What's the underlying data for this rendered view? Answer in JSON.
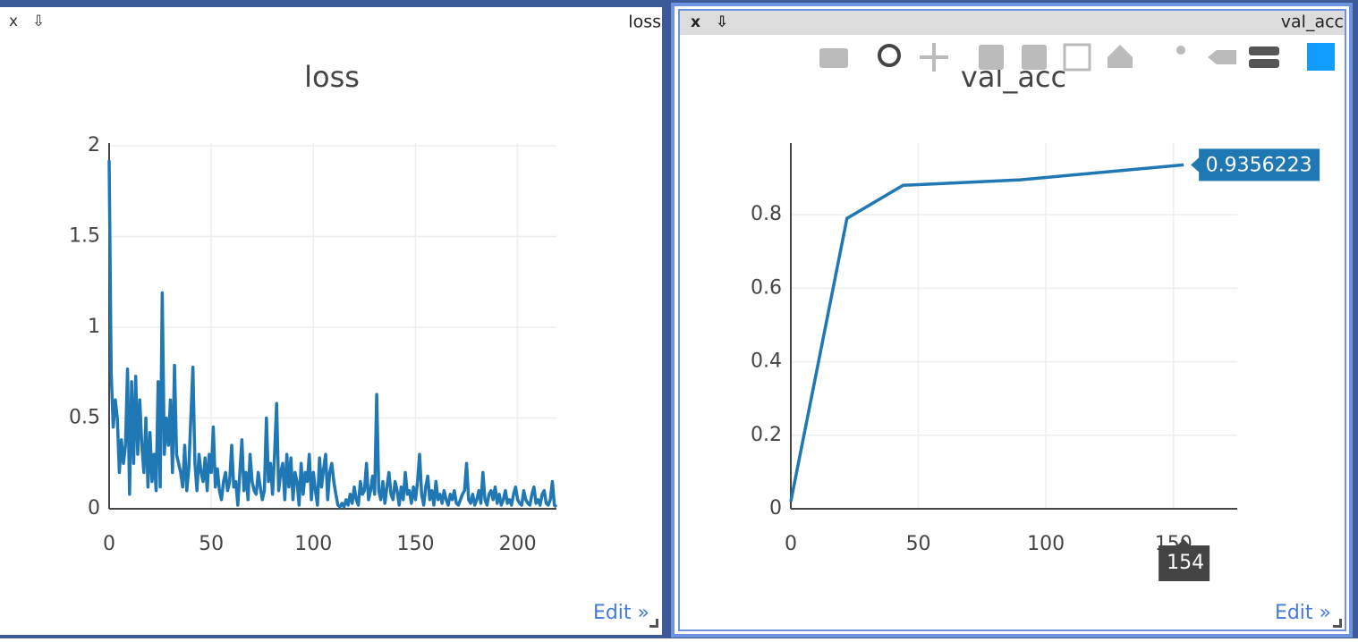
{
  "windows": [
    {
      "close": "x",
      "download": "⇩",
      "title": "loss",
      "edit": "Edit »"
    },
    {
      "close": "x",
      "download": "⇩",
      "title": "val_acc",
      "edit": "Edit »"
    }
  ],
  "chart_data": [
    {
      "type": "line",
      "title": "loss",
      "x": [
        0,
        1,
        2,
        3,
        4,
        5,
        6,
        7,
        8,
        9,
        10,
        11,
        12,
        13,
        14,
        15,
        16,
        17,
        18,
        19,
        20,
        21,
        22,
        23,
        24,
        25,
        26,
        27,
        28,
        29,
        30,
        31,
        32,
        33,
        34,
        35,
        36,
        37,
        38,
        39,
        40,
        41,
        42,
        43,
        44,
        45,
        46,
        47,
        48,
        49,
        50,
        51,
        52,
        53,
        54,
        55,
        56,
        57,
        58,
        59,
        60,
        61,
        62,
        63,
        64,
        65,
        66,
        67,
        68,
        69,
        70,
        71,
        72,
        73,
        74,
        75,
        76,
        77,
        78,
        79,
        80,
        81,
        82,
        83,
        84,
        85,
        86,
        87,
        88,
        89,
        90,
        91,
        92,
        93,
        94,
        95,
        96,
        97,
        98,
        99,
        100,
        101,
        102,
        103,
        104,
        105,
        106,
        107,
        108,
        109,
        110,
        111,
        112,
        113,
        114,
        115,
        116,
        117,
        118,
        119,
        120,
        121,
        122,
        123,
        124,
        125,
        126,
        127,
        128,
        129,
        130,
        131,
        132,
        133,
        134,
        135,
        136,
        137,
        138,
        139,
        140,
        141,
        142,
        143,
        144,
        145,
        146,
        147,
        148,
        149,
        150,
        151,
        152,
        153,
        154,
        155,
        156,
        157,
        158,
        159,
        160,
        161,
        162,
        163,
        164,
        165,
        166,
        167,
        168,
        169,
        170,
        171,
        172,
        173,
        174,
        175,
        176,
        177,
        178,
        179,
        180,
        181,
        182,
        183,
        184,
        185,
        186,
        187,
        188,
        189,
        190,
        191,
        192,
        193,
        194,
        195,
        196,
        197,
        198,
        199,
        200,
        201,
        202,
        203,
        204,
        205,
        206,
        207,
        208,
        209,
        210,
        211,
        212,
        213,
        214,
        215,
        216,
        217,
        218,
        219
      ],
      "series": [
        {
          "color": "#1f77b4",
          "values": [
            1.92,
            0.75,
            0.45,
            0.6,
            0.5,
            0.2,
            0.38,
            0.25,
            0.35,
            0.77,
            0.08,
            0.7,
            0.25,
            0.73,
            0.3,
            0.6,
            0.35,
            0.2,
            0.5,
            0.12,
            0.42,
            0.15,
            0.3,
            0.1,
            0.7,
            0.12,
            1.19,
            0.3,
            0.5,
            0.35,
            0.6,
            0.2,
            0.79,
            0.3,
            0.25,
            0.2,
            0.12,
            0.35,
            0.1,
            0.22,
            0.5,
            0.78,
            0.25,
            0.1,
            0.3,
            0.2,
            0.15,
            0.28,
            0.1,
            0.3,
            0.2,
            0.45,
            0.12,
            0.22,
            0.1,
            0.05,
            0.15,
            0.2,
            0.1,
            0.15,
            0.35,
            0.12,
            0.15,
            0.02,
            0.2,
            0.38,
            0.1,
            0.2,
            0.05,
            0.3,
            0.15,
            0.1,
            0.08,
            0.2,
            0.12,
            0.05,
            0.1,
            0.5,
            0.15,
            0.25,
            0.08,
            0.3,
            0.58,
            0.1,
            0.2,
            0.25,
            0.05,
            0.3,
            0.12,
            0.28,
            0.05,
            0.2,
            0.15,
            0.02,
            0.25,
            0.08,
            0.2,
            0.15,
            0.3,
            0.05,
            0.2,
            0.1,
            0.02,
            0.28,
            0.12,
            0.22,
            0.3,
            0.05,
            0.2,
            0.25,
            0.15,
            0.08,
            0.02,
            0.01,
            0.03,
            0.01,
            0.05,
            0.02,
            0.08,
            0.03,
            0.12,
            0.05,
            0.02,
            0.15,
            0.08,
            0.1,
            0.25,
            0.05,
            0.1,
            0.18,
            0.08,
            0.63,
            0.1,
            0.05,
            0.15,
            0.03,
            0.12,
            0.2,
            0.08,
            0.05,
            0.15,
            0.1,
            0.02,
            0.12,
            0.05,
            0.2,
            0.08,
            0.1,
            0.03,
            0.12,
            0.05,
            0.15,
            0.3,
            0.08,
            0.02,
            0.12,
            0.18,
            0.05,
            0.1,
            0.02,
            0.15,
            0.05,
            0.08,
            0.03,
            0.1,
            0.05,
            0.02,
            0.08,
            0.05,
            0.1,
            0.03,
            0.02,
            0.05,
            0.08,
            0.1,
            0.25,
            0.05,
            0.03,
            0.08,
            0.02,
            0.05,
            0.1,
            0.03,
            0.2,
            0.05,
            0.02,
            0.08,
            0.1,
            0.05,
            0.12,
            0.03,
            0.08,
            0.02,
            0.05,
            0.1,
            0.03,
            0.05,
            0.02,
            0.08,
            0.12,
            0.05,
            0.03,
            0.02,
            0.1,
            0.05,
            0.03,
            0.02,
            0.08,
            0.12,
            0.03,
            0.05,
            0.02,
            0.08,
            0.1,
            0.03,
            0.02,
            0.05,
            0.15,
            0.02,
            0.01
          ]
        }
      ],
      "xlim": [
        0,
        219
      ],
      "ylim": [
        0,
        2.015
      ],
      "xticks": [
        0,
        50,
        100,
        150,
        200
      ],
      "yticks": [
        0,
        0.5,
        1,
        1.5,
        2
      ],
      "grid": true
    },
    {
      "type": "line",
      "title": "val_acc",
      "x": [
        0,
        22,
        44,
        90,
        154
      ],
      "series": [
        {
          "color": "#1f77b4",
          "values": [
            0.02,
            0.79,
            0.88,
            0.895,
            0.9356223
          ]
        }
      ],
      "xlim": [
        0,
        175
      ],
      "ylim": [
        0,
        0.995
      ],
      "xticks": [
        0,
        50,
        100,
        150
      ],
      "yticks": [
        0,
        0.2,
        0.4,
        0.6,
        0.8
      ],
      "grid": true
    }
  ]
}
